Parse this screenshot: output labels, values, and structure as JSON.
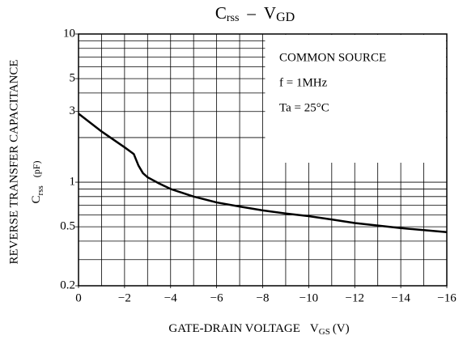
{
  "chart_data": {
    "type": "line",
    "title": {
      "c": "C",
      "c_sub": "rss",
      "sep": "–",
      "v": "V",
      "v_sub": "GD"
    },
    "ylabel": {
      "line1": "REVERSE  TRANSFER  CAPACITANCE",
      "c": "C",
      "c_sub": "rss",
      "unit": "(pF)"
    },
    "xlabel": {
      "text": "GATE-DRAIN   VOLTAGE",
      "v": "V",
      "v_sub": "GS",
      "unit": "(V)"
    },
    "annotations": [
      "COMMON SOURCE",
      "f = 1MHz",
      "Ta = 25°C"
    ],
    "x": [
      0,
      -1,
      -2,
      -2.4,
      -2.6,
      -2.8,
      -3,
      -3.5,
      -4,
      -5,
      -6,
      -7,
      -8,
      -9,
      -10,
      -11,
      -12,
      -13,
      -14,
      -15,
      -16
    ],
    "series": [
      {
        "name": "Crss",
        "color": "#000000",
        "values": [
          2.9,
          2.2,
          1.72,
          1.55,
          1.3,
          1.15,
          1.08,
          0.98,
          0.9,
          0.8,
          0.73,
          0.685,
          0.645,
          0.615,
          0.59,
          0.56,
          0.53,
          0.51,
          0.49,
          0.475,
          0.46
        ]
      }
    ],
    "xlim": [
      0,
      -16
    ],
    "xticks": [
      0,
      {
        "value": -2,
        "label": "−2"
      },
      {
        "value": -4,
        "label": "−4"
      },
      {
        "value": -6,
        "label": "−6"
      },
      {
        "value": -8,
        "label": "−8"
      },
      {
        "value": -10,
        "label": "−10"
      },
      {
        "value": -12,
        "label": "−12"
      },
      {
        "value": -14,
        "label": "−14"
      },
      {
        "value": -16,
        "label": "−16"
      }
    ],
    "xgrid": [
      -1,
      -2,
      -3,
      -4,
      -5,
      -6,
      -7,
      -8,
      -9,
      -10,
      -11,
      -12,
      -13,
      -14,
      -15
    ],
    "ylim": [
      0.2,
      10
    ],
    "yscale": "log",
    "yticks": [
      0.2,
      0.5,
      1,
      3,
      5,
      10
    ],
    "ygrid": [
      0.3,
      0.4,
      0.5,
      0.6,
      0.7,
      0.8,
      0.9,
      1,
      2,
      3,
      4,
      5,
      6,
      7,
      8,
      9
    ],
    "grid": true
  }
}
